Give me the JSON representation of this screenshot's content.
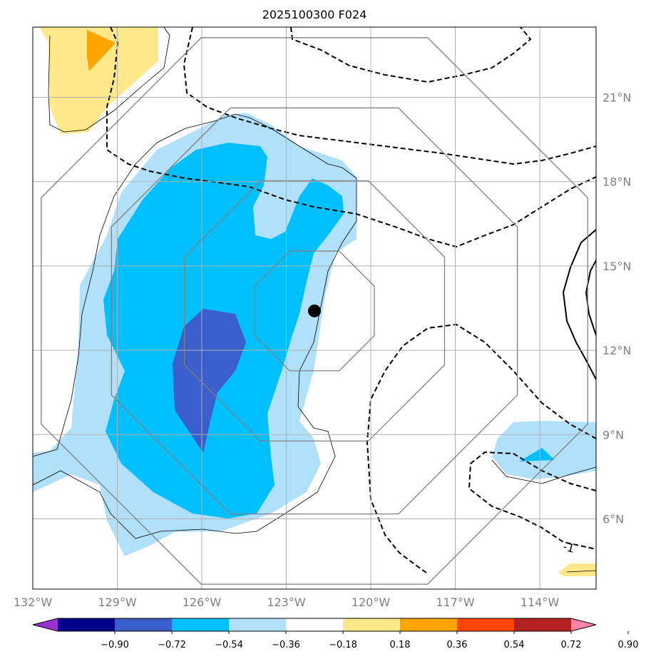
{
  "chart_data": {
    "type": "map",
    "title": "2025100300 F024",
    "projection": "lon-lat",
    "xlim": [
      -132,
      -112
    ],
    "ylim": [
      3.5,
      23.5
    ],
    "x_ticks": [
      {
        "value": -132,
        "label": "132°W"
      },
      {
        "value": -129,
        "label": "129°W"
      },
      {
        "value": -126,
        "label": "126°W"
      },
      {
        "value": -123,
        "label": "123°W"
      },
      {
        "value": -120,
        "label": "120°W"
      },
      {
        "value": -117,
        "label": "117°W"
      },
      {
        "value": -114,
        "label": "114°W"
      }
    ],
    "y_ticks": [
      {
        "value": 6,
        "label": "6°N"
      },
      {
        "value": 9,
        "label": "9°N"
      },
      {
        "value": 12,
        "label": "12°N"
      },
      {
        "value": 15,
        "label": "15°N"
      },
      {
        "value": 18,
        "label": "18°N"
      },
      {
        "value": 21,
        "label": "21°N"
      }
    ],
    "center_marker": {
      "lon": -122,
      "lat": 13.4
    },
    "range_rings_deg": [
      2.3,
      5,
      7.8,
      10.5
    ],
    "contour_label": {
      "text": "-1",
      "lon": -113.2,
      "lat": 4.9
    },
    "colorbar": {
      "levels": [
        "−0.90",
        "−0.72",
        "−0.54",
        "−0.36",
        "−0.18",
        "0.18",
        "0.36",
        "0.54",
        "0.72",
        "0.90"
      ],
      "colors": [
        "#9b30d0",
        "#00008b",
        "#3a5fcd",
        "#00bfff",
        "#b0e0fa",
        "#ffffff",
        "#ffe88a",
        "#ffa500",
        "#ff4500",
        "#b22222",
        "#ff82ab"
      ],
      "extend": "both"
    }
  }
}
